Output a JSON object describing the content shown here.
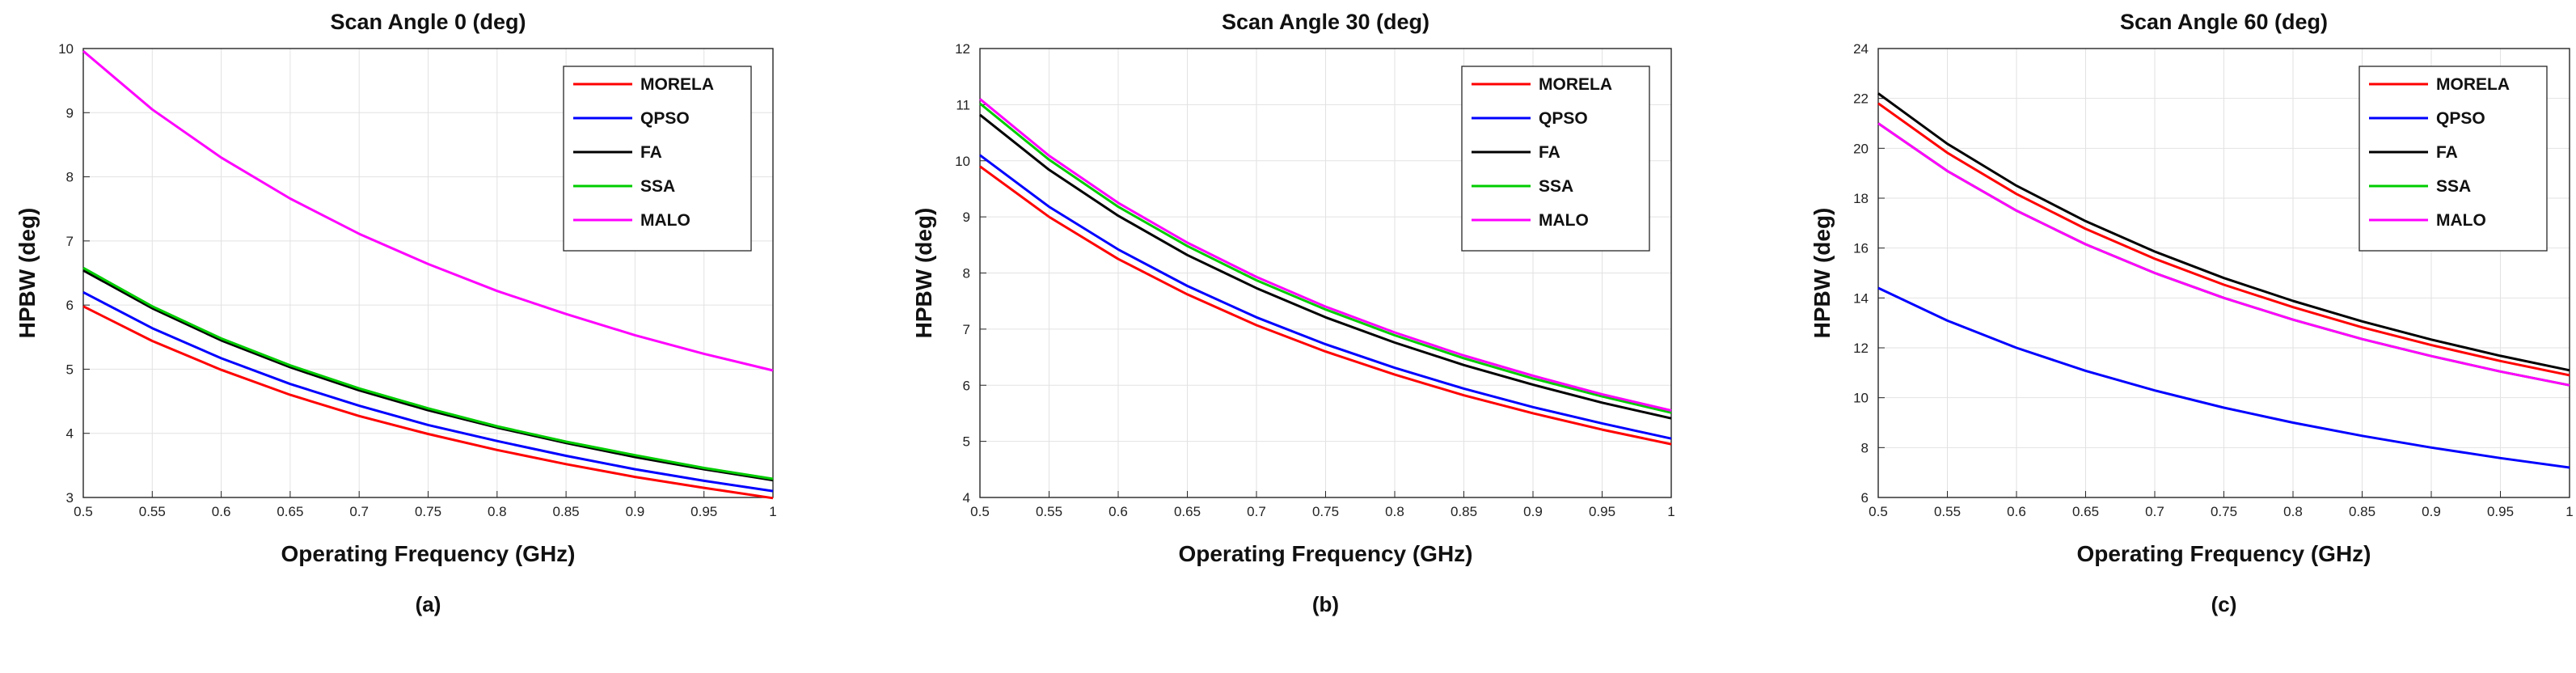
{
  "chart_data": [
    {
      "type": "line",
      "title": "Scan Angle 0 (deg)",
      "xlabel": "Operating Frequency (GHz)",
      "ylabel": "HPBW (deg)",
      "caption": "(a)",
      "xlim": [
        0.5,
        1
      ],
      "ylim": [
        3,
        10
      ],
      "xticks": [
        "0.5",
        "0.55",
        "0.6",
        "0.65",
        "0.7",
        "0.75",
        "0.8",
        "0.85",
        "0.9",
        "0.95",
        "1"
      ],
      "yticks": [
        "3",
        "4",
        "5",
        "6",
        "7",
        "8",
        "9",
        "10"
      ],
      "grid": true,
      "legend_position": "top-right",
      "x": [
        0.5,
        0.55,
        0.6,
        0.65,
        0.7,
        0.75,
        0.8,
        0.85,
        0.9,
        0.95,
        1.0
      ],
      "series": [
        {
          "name": "MORELA",
          "color": "#ff0000",
          "values": [
            5.98,
            5.44,
            4.99,
            4.6,
            4.27,
            3.99,
            3.74,
            3.52,
            3.32,
            3.15,
            2.99
          ]
        },
        {
          "name": "QPSO",
          "color": "#0000ff",
          "values": [
            6.2,
            5.64,
            5.17,
            4.77,
            4.43,
            4.13,
            3.88,
            3.65,
            3.44,
            3.26,
            3.1
          ]
        },
        {
          "name": "FA",
          "color": "#000000",
          "values": [
            6.54,
            5.95,
            5.45,
            5.03,
            4.67,
            4.36,
            4.09,
            3.85,
            3.63,
            3.44,
            3.27
          ]
        },
        {
          "name": "SSA",
          "color": "#00cc00",
          "values": [
            6.58,
            5.98,
            5.48,
            5.06,
            4.7,
            4.39,
            4.11,
            3.87,
            3.66,
            3.46,
            3.29
          ]
        },
        {
          "name": "MALO",
          "color": "#ff00ff",
          "values": [
            9.96,
            9.05,
            8.3,
            7.66,
            7.11,
            6.64,
            6.22,
            5.86,
            5.53,
            5.24,
            4.98
          ]
        }
      ]
    },
    {
      "type": "line",
      "title": "Scan Angle 30 (deg)",
      "xlabel": "Operating Frequency (GHz)",
      "ylabel": "HPBW (deg)",
      "caption": "(b)",
      "xlim": [
        0.5,
        1
      ],
      "ylim": [
        4,
        12
      ],
      "xticks": [
        "0.5",
        "0.55",
        "0.6",
        "0.65",
        "0.7",
        "0.75",
        "0.8",
        "0.85",
        "0.9",
        "0.95",
        "1"
      ],
      "yticks": [
        "4",
        "5",
        "6",
        "7",
        "8",
        "9",
        "10",
        "11",
        "12"
      ],
      "grid": true,
      "legend_position": "top-right",
      "x": [
        0.5,
        0.55,
        0.6,
        0.65,
        0.7,
        0.75,
        0.8,
        0.85,
        0.9,
        0.95,
        1.0
      ],
      "series": [
        {
          "name": "MORELA",
          "color": "#ff0000",
          "values": [
            9.9,
            9.0,
            8.25,
            7.62,
            7.07,
            6.6,
            6.19,
            5.82,
            5.5,
            5.21,
            4.95
          ]
        },
        {
          "name": "QPSO",
          "color": "#0000ff",
          "values": [
            10.1,
            9.18,
            8.42,
            7.77,
            7.21,
            6.73,
            6.31,
            5.94,
            5.61,
            5.32,
            5.05
          ]
        },
        {
          "name": "FA",
          "color": "#000000",
          "values": [
            10.82,
            9.84,
            9.02,
            8.32,
            7.73,
            7.21,
            6.76,
            6.36,
            6.01,
            5.69,
            5.41
          ]
        },
        {
          "name": "SSA",
          "color": "#00cc00",
          "values": [
            11.02,
            10.02,
            9.18,
            8.48,
            7.87,
            7.35,
            6.89,
            6.48,
            6.12,
            5.8,
            5.51
          ]
        },
        {
          "name": "MALO",
          "color": "#ff00ff",
          "values": [
            11.1,
            10.09,
            9.25,
            8.54,
            7.93,
            7.4,
            6.94,
            6.53,
            6.17,
            5.84,
            5.55
          ]
        }
      ]
    },
    {
      "type": "line",
      "title": "Scan Angle 60 (deg)",
      "xlabel": "Operating Frequency (GHz)",
      "ylabel": "HPBW (deg)",
      "caption": "(c)",
      "xlim": [
        0.5,
        1
      ],
      "ylim": [
        6,
        24
      ],
      "xticks": [
        "0.5",
        "0.55",
        "0.6",
        "0.65",
        "0.7",
        "0.75",
        "0.8",
        "0.85",
        "0.9",
        "0.95",
        "1"
      ],
      "yticks": [
        "6",
        "8",
        "10",
        "12",
        "14",
        "16",
        "18",
        "20",
        "22",
        "24"
      ],
      "grid": true,
      "legend_position": "top-right",
      "x": [
        0.5,
        0.55,
        0.6,
        0.65,
        0.7,
        0.75,
        0.8,
        0.85,
        0.9,
        0.95,
        1.0
      ],
      "series": [
        {
          "name": "MORELA",
          "color": "#ff0000",
          "values": [
            21.8,
            19.82,
            18.17,
            16.77,
            15.57,
            14.53,
            13.63,
            12.82,
            12.11,
            11.47,
            10.9
          ]
        },
        {
          "name": "QPSO",
          "color": "#0000ff",
          "values": [
            14.4,
            13.09,
            12.0,
            11.08,
            10.29,
            9.6,
            9.0,
            8.47,
            8.0,
            7.58,
            7.2
          ]
        },
        {
          "name": "FA",
          "color": "#000000",
          "values": [
            22.2,
            20.18,
            18.5,
            17.08,
            15.86,
            14.8,
            13.88,
            13.06,
            12.33,
            11.68,
            11.1
          ]
        },
        {
          "name": "SSA",
          "color": "#00cc00",
          "values": [
            21.0,
            19.09,
            17.5,
            16.15,
            15.0,
            14.0,
            13.13,
            12.35,
            11.67,
            11.05,
            10.5
          ]
        },
        {
          "name": "MALO",
          "color": "#ff00ff",
          "values": [
            21.0,
            19.09,
            17.5,
            16.15,
            15.0,
            14.0,
            13.13,
            12.35,
            11.67,
            11.05,
            10.5
          ]
        }
      ]
    }
  ]
}
